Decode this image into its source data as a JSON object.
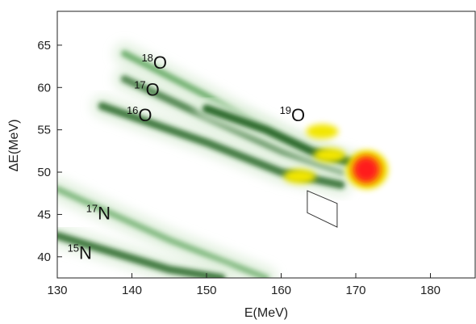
{
  "chart_data": {
    "type": "heatmap",
    "xlabel": "E(MeV)",
    "ylabel": "ΔE(MeV)",
    "xlim": [
      130,
      186
    ],
    "ylim": [
      37.5,
      69
    ],
    "xticks": [
      130,
      140,
      150,
      160,
      170,
      180
    ],
    "yticks": [
      40,
      45,
      50,
      55,
      60,
      65
    ],
    "grid": false,
    "colors": {
      "low": "#dcedd8",
      "mid": "#2e8a2e",
      "dark": "#1a5e1a",
      "high_yellow": "#f2e600",
      "high_orange": "#f59a00",
      "peak_red": "#ff1a1a"
    },
    "bands": [
      {
        "name": "18O",
        "points": [
          [
            139,
            64
          ],
          [
            150,
            59
          ],
          [
            160,
            54
          ],
          [
            168,
            51
          ]
        ],
        "intensity": 0.25
      },
      {
        "name": "17O",
        "points": [
          [
            139,
            61
          ],
          [
            150,
            56.5
          ],
          [
            160,
            52.5
          ],
          [
            168,
            50
          ]
        ],
        "intensity": 0.35
      },
      {
        "name": "16O",
        "points": [
          [
            136,
            57.8
          ],
          [
            150,
            53.5
          ],
          [
            160,
            50
          ],
          [
            168,
            48.5
          ]
        ],
        "intensity": 0.45
      },
      {
        "name": "19O",
        "points": [
          [
            150,
            57.5
          ],
          [
            158,
            55
          ],
          [
            164,
            52.5
          ],
          [
            170,
            51
          ]
        ],
        "intensity": 0.55
      },
      {
        "name": "17N",
        "points": [
          [
            130,
            48
          ],
          [
            145,
            42
          ],
          [
            158,
            37.5
          ]
        ],
        "intensity": 0.15
      },
      {
        "name": "15N",
        "points": [
          [
            130,
            42.5
          ],
          [
            145,
            38.5
          ],
          [
            152,
            37.5
          ]
        ],
        "intensity": 0.45
      }
    ],
    "hotspots": [
      {
        "x": 171.5,
        "y": 50.3,
        "level": "red"
      },
      {
        "x": 166.5,
        "y": 52.0,
        "level": "yellow"
      },
      {
        "x": 165.5,
        "y": 54.8,
        "level": "yellow"
      },
      {
        "x": 162.5,
        "y": 49.5,
        "level": "yellow"
      }
    ],
    "annotations": [
      {
        "mass": "18",
        "element": "O",
        "x": 143,
        "y": 63
      },
      {
        "mass": "17",
        "element": "O",
        "x": 142,
        "y": 59.8
      },
      {
        "mass": "16",
        "element": "O",
        "x": 141,
        "y": 56.8
      },
      {
        "mass": "19",
        "element": "O",
        "x": 161.5,
        "y": 56.8
      },
      {
        "mass": "17",
        "element": "N",
        "x": 135.5,
        "y": 45.2
      },
      {
        "mass": "15",
        "element": "N",
        "x": 133,
        "y": 40.5
      }
    ],
    "gate": {
      "corners": [
        [
          163.5,
          47.8
        ],
        [
          167.5,
          46.3
        ],
        [
          167.5,
          43.5
        ],
        [
          163.5,
          45.2
        ]
      ]
    }
  }
}
